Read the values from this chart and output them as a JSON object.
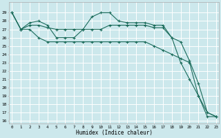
{
  "xlabel": "Humidex (Indice chaleur)",
  "bg_color": "#cce8ec",
  "grid_color": "#ffffff",
  "line_color": "#1a6b5a",
  "xlim": [
    -0.3,
    23.3
  ],
  "ylim": [
    16,
    30
  ],
  "series": [
    [
      29,
      27,
      27.8,
      28,
      27.5,
      26.0,
      26.0,
      26.0,
      27.0,
      28.5,
      29.0,
      29.0,
      28.0,
      27.8,
      27.8,
      27.8,
      27.5,
      27.5,
      26.0,
      23.0,
      21.0,
      19.0,
      17.0,
      16.5
    ],
    [
      29,
      27,
      27.5,
      27.5,
      27.2,
      27.0,
      27.0,
      27.0,
      27.0,
      27.0,
      27.0,
      27.5,
      27.5,
      27.5,
      27.5,
      27.5,
      27.2,
      27.2,
      26.0,
      25.5,
      23.2,
      20.5,
      17.0,
      16.5
    ],
    [
      29,
      27,
      27.0,
      26.0,
      25.5,
      25.5,
      25.5,
      25.5,
      25.5,
      25.5,
      25.5,
      25.5,
      25.5,
      25.5,
      25.5,
      25.5,
      25.0,
      24.5,
      24.0,
      23.5,
      23.0,
      19.0,
      16.5,
      16.5
    ]
  ]
}
